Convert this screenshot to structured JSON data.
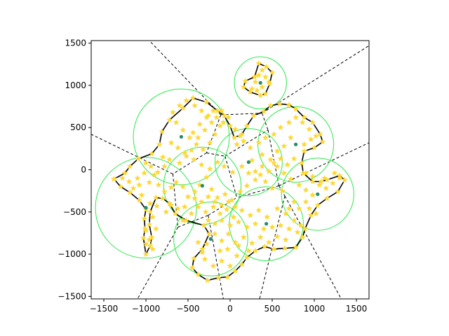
{
  "chart_data": {
    "type": "scatter",
    "title": "",
    "xlabel": "",
    "ylabel": "",
    "xlim": [
      -1650,
      1650
    ],
    "ylim": [
      -1530,
      1530
    ],
    "x_ticks": [
      -1500,
      -1000,
      -500,
      0,
      500,
      1000,
      1500
    ],
    "x_tick_labels": [
      "−1500",
      "−1000",
      "−500",
      "0",
      "500",
      "1000",
      "1500"
    ],
    "y_ticks": [
      -1500,
      -1000,
      -500,
      0,
      500,
      1000,
      1500
    ],
    "y_tick_labels": [
      "−1500",
      "−1000",
      "−500",
      "0",
      "500",
      "1000",
      "1500"
    ],
    "grid": false,
    "legend": "none",
    "colors": {
      "points": "#fdd835",
      "centers": "#1e8e6e",
      "circles": "#2ee84b",
      "boundary": "#000000",
      "voronoi": "#000000"
    },
    "centers": [
      {
        "x": -580,
        "y": 390
      },
      {
        "x": 360,
        "y": 1030
      },
      {
        "x": 780,
        "y": 300
      },
      {
        "x": 220,
        "y": 90
      },
      {
        "x": -330,
        "y": -190
      },
      {
        "x": 1040,
        "y": -290
      },
      {
        "x": -1000,
        "y": -450
      },
      {
        "x": 430,
        "y": -640
      },
      {
        "x": -230,
        "y": -820
      }
    ],
    "circle_radii": [
      570,
      310,
      450,
      400,
      460,
      430,
      600,
      440,
      440
    ],
    "voronoi_edges": [
      [
        [
          -110,
          650
        ],
        [
          380,
          670
        ]
      ],
      [
        [
          380,
          670
        ],
        [
          450,
          470
        ]
      ],
      [
        [
          380,
          670
        ],
        [
          1650,
          1470
        ]
      ],
      [
        [
          -110,
          650
        ],
        [
          -960,
          1530
        ]
      ],
      [
        [
          -110,
          650
        ],
        [
          -280,
          200
        ]
      ],
      [
        [
          -280,
          200
        ],
        [
          -60,
          160
        ]
      ],
      [
        [
          -60,
          160
        ],
        [
          450,
          470
        ]
      ],
      [
        [
          -60,
          160
        ],
        [
          80,
          -330
        ]
      ],
      [
        [
          450,
          470
        ],
        [
          580,
          -190
        ]
      ],
      [
        [
          580,
          -190
        ],
        [
          80,
          -330
        ]
      ],
      [
        [
          580,
          -190
        ],
        [
          1650,
          320
        ]
      ],
      [
        [
          580,
          -190
        ],
        [
          650,
          -310
        ]
      ],
      [
        [
          650,
          -310
        ],
        [
          1320,
          -1530
        ]
      ],
      [
        [
          650,
          -310
        ],
        [
          350,
          -1530
        ]
      ],
      [
        [
          -280,
          200
        ],
        [
          -680,
          -50
        ]
      ],
      [
        [
          -680,
          -50
        ],
        [
          -1650,
          420
        ]
      ],
      [
        [
          -680,
          -50
        ],
        [
          -620,
          -680
        ]
      ],
      [
        [
          -620,
          -680
        ],
        [
          -1100,
          -1530
        ]
      ],
      [
        [
          -620,
          -680
        ],
        [
          -260,
          -540
        ]
      ],
      [
        [
          -260,
          -540
        ],
        [
          80,
          -330
        ]
      ],
      [
        [
          -260,
          -540
        ],
        [
          -80,
          -1530
        ]
      ]
    ],
    "boundary": [
      [
        -1380,
        -110
      ],
      [
        -1250,
        -40
      ],
      [
        -1190,
        40
      ],
      [
        -1090,
        130
      ],
      [
        -930,
        190
      ],
      [
        -840,
        300
      ],
      [
        -810,
        450
      ],
      [
        -720,
        590
      ],
      [
        -560,
        730
      ],
      [
        -440,
        850
      ],
      [
        -280,
        800
      ],
      [
        -150,
        700
      ],
      [
        -70,
        640
      ],
      [
        0,
        520
      ],
      [
        50,
        380
      ],
      [
        140,
        420
      ],
      [
        200,
        520
      ],
      [
        280,
        640
      ],
      [
        400,
        690
      ],
      [
        480,
        760
      ],
      [
        590,
        780
      ],
      [
        700,
        770
      ],
      [
        780,
        720
      ],
      [
        880,
        620
      ],
      [
        980,
        560
      ],
      [
        1070,
        420
      ],
      [
        1100,
        330
      ],
      [
        1000,
        260
      ],
      [
        880,
        220
      ],
      [
        850,
        80
      ],
      [
        870,
        -40
      ],
      [
        980,
        -140
      ],
      [
        1080,
        -140
      ],
      [
        1150,
        -120
      ],
      [
        1300,
        -70
      ],
      [
        1360,
        -120
      ],
      [
        1280,
        -260
      ],
      [
        1150,
        -340
      ],
      [
        1040,
        -420
      ],
      [
        960,
        -540
      ],
      [
        890,
        -700
      ],
      [
        860,
        -800
      ],
      [
        780,
        -920
      ],
      [
        650,
        -930
      ],
      [
        520,
        -940
      ],
      [
        410,
        -910
      ],
      [
        300,
        -960
      ],
      [
        200,
        -1040
      ],
      [
        140,
        -1120
      ],
      [
        60,
        -1200
      ],
      [
        -30,
        -1270
      ],
      [
        -140,
        -1280
      ],
      [
        -270,
        -1310
      ],
      [
        -380,
        -1240
      ],
      [
        -450,
        -1160
      ],
      [
        -430,
        -1050
      ],
      [
        -330,
        -940
      ],
      [
        -250,
        -760
      ],
      [
        -310,
        -660
      ],
      [
        -520,
        -600
      ],
      [
        -650,
        -520
      ],
      [
        -720,
        -400
      ],
      [
        -800,
        -340
      ],
      [
        -880,
        -330
      ],
      [
        -950,
        -500
      ],
      [
        -960,
        -650
      ],
      [
        -930,
        -800
      ],
      [
        -950,
        -900
      ],
      [
        -1000,
        -1000
      ],
      [
        -1030,
        -810
      ],
      [
        -1010,
        -700
      ],
      [
        -1020,
        -580
      ],
      [
        -1000,
        -470
      ],
      [
        -1080,
        -360
      ],
      [
        -1190,
        -270
      ],
      [
        -1300,
        -200
      ],
      [
        -1380,
        -110
      ]
    ],
    "top_cluster": [
      [
        290,
        1100
      ],
      [
        340,
        1260
      ],
      [
        430,
        1220
      ],
      [
        500,
        1150
      ],
      [
        470,
        1020
      ],
      [
        420,
        900
      ],
      [
        360,
        880
      ],
      [
        240,
        920
      ],
      [
        160,
        980
      ],
      [
        180,
        1050
      ],
      [
        290,
        1100
      ]
    ],
    "points_scatter": [
      [
        -1100,
        -100
      ],
      [
        -1000,
        80
      ],
      [
        -900,
        -60
      ],
      [
        -960,
        -150
      ],
      [
        -850,
        -180
      ],
      [
        -780,
        -260
      ],
      [
        -700,
        -210
      ],
      [
        -640,
        -150
      ],
      [
        -560,
        -200
      ],
      [
        -500,
        -320
      ],
      [
        -420,
        -260
      ],
      [
        -360,
        -180
      ],
      [
        -280,
        -90
      ],
      [
        -220,
        -230
      ],
      [
        -150,
        -330
      ],
      [
        -60,
        -290
      ],
      [
        20,
        -360
      ],
      [
        120,
        -260
      ],
      [
        200,
        -190
      ],
      [
        300,
        -120
      ],
      [
        360,
        -60
      ],
      [
        420,
        -140
      ],
      [
        500,
        -220
      ],
      [
        620,
        -250
      ],
      [
        -600,
        80
      ],
      [
        -520,
        160
      ],
      [
        -430,
        120
      ],
      [
        -340,
        60
      ],
      [
        -240,
        10
      ],
      [
        -150,
        90
      ],
      [
        -70,
        40
      ],
      [
        30,
        -30
      ],
      [
        140,
        40
      ],
      [
        260,
        110
      ],
      [
        380,
        180
      ],
      [
        480,
        120
      ],
      [
        560,
        40
      ],
      [
        640,
        -40
      ],
      [
        720,
        -110
      ],
      [
        820,
        -180
      ],
      [
        900,
        -240
      ],
      [
        -640,
        560
      ],
      [
        -560,
        470
      ],
      [
        -480,
        380
      ],
      [
        -400,
        300
      ],
      [
        -320,
        240
      ],
      [
        -240,
        320
      ],
      [
        -180,
        420
      ],
      [
        -120,
        520
      ],
      [
        -700,
        320
      ],
      [
        -620,
        260
      ],
      [
        -540,
        200
      ],
      [
        -460,
        230
      ],
      [
        -380,
        380
      ],
      [
        -300,
        470
      ],
      [
        -220,
        560
      ],
      [
        -540,
        -440
      ],
      [
        -460,
        -520
      ],
      [
        -380,
        -440
      ],
      [
        -290,
        -500
      ],
      [
        -200,
        -440
      ],
      [
        -120,
        -520
      ],
      [
        -40,
        -470
      ],
      [
        40,
        -560
      ],
      [
        140,
        -480
      ],
      [
        240,
        -540
      ],
      [
        340,
        -480
      ],
      [
        440,
        -560
      ],
      [
        560,
        -460
      ],
      [
        660,
        -520
      ],
      [
        760,
        -600
      ],
      [
        -180,
        -760
      ],
      [
        -100,
        -840
      ],
      [
        -20,
        -760
      ],
      [
        60,
        -860
      ],
      [
        160,
        -800
      ],
      [
        260,
        -870
      ],
      [
        360,
        -800
      ],
      [
        460,
        -860
      ],
      [
        560,
        -790
      ],
      [
        660,
        -830
      ],
      [
        -300,
        -1060
      ],
      [
        -200,
        -1140
      ],
      [
        -100,
        -1080
      ],
      [
        0,
        -1140
      ],
      [
        80,
        -1020
      ],
      [
        -30,
        -940
      ],
      [
        -330,
        -980
      ],
      [
        -380,
        -860
      ],
      [
        -280,
        -880
      ],
      [
        -120,
        -960
      ],
      [
        220,
        -960
      ],
      [
        100,
        -900
      ],
      [
        -1150,
        -220
      ],
      [
        -1050,
        -300
      ],
      [
        -950,
        -400
      ],
      [
        -870,
        -430
      ],
      [
        -920,
        -560
      ],
      [
        -880,
        -700
      ],
      [
        -1000,
        -720
      ],
      [
        -960,
        -830
      ],
      [
        -1000,
        -880
      ],
      [
        -920,
        -940
      ],
      [
        -860,
        -30
      ],
      [
        -780,
        40
      ],
      [
        -720,
        120
      ],
      [
        -800,
        150
      ],
      [
        -680,
        680
      ],
      [
        -600,
        760
      ],
      [
        -520,
        820
      ],
      [
        -420,
        760
      ],
      [
        -340,
        700
      ],
      [
        -260,
        640
      ],
      [
        -160,
        620
      ],
      [
        -80,
        560
      ],
      [
        80,
        300
      ],
      [
        160,
        340
      ],
      [
        240,
        260
      ],
      [
        340,
        320
      ],
      [
        420,
        380
      ],
      [
        520,
        420
      ],
      [
        600,
        500
      ],
      [
        700,
        560
      ],
      [
        780,
        620
      ],
      [
        860,
        560
      ],
      [
        940,
        480
      ],
      [
        1020,
        400
      ],
      [
        960,
        360
      ],
      [
        880,
        300
      ],
      [
        720,
        380
      ],
      [
        640,
        280
      ],
      [
        560,
        220
      ],
      [
        900,
        -40
      ],
      [
        980,
        -80
      ],
      [
        1060,
        -180
      ],
      [
        1140,
        -220
      ],
      [
        1220,
        -160
      ],
      [
        1300,
        -100
      ],
      [
        1240,
        -40
      ],
      [
        1120,
        -100
      ],
      [
        980,
        -300
      ],
      [
        900,
        -380
      ],
      [
        820,
        -460
      ],
      [
        760,
        -380
      ],
      [
        700,
        -460
      ],
      [
        940,
        -460
      ],
      [
        1020,
        -520
      ],
      [
        260,
        960
      ],
      [
        300,
        1040
      ],
      [
        340,
        1120
      ],
      [
        380,
        1180
      ],
      [
        420,
        1100
      ],
      [
        460,
        1040
      ],
      [
        380,
        980
      ],
      [
        320,
        940
      ],
      [
        220,
        -40
      ],
      [
        300,
        -20
      ],
      [
        380,
        40
      ],
      [
        460,
        -20
      ],
      [
        520,
        80
      ],
      [
        600,
        130
      ],
      [
        680,
        60
      ],
      [
        760,
        130
      ],
      [
        -420,
        -340
      ],
      [
        -340,
        -380
      ],
      [
        -260,
        -320
      ],
      [
        -180,
        -380
      ],
      [
        -100,
        -420
      ],
      [
        -20,
        -380
      ],
      [
        60,
        -440
      ],
      [
        -260,
        -600
      ],
      [
        -180,
        -640
      ],
      [
        -100,
        -600
      ],
      [
        0,
        -660
      ],
      [
        100,
        -620
      ],
      [
        200,
        -680
      ],
      [
        300,
        -640
      ],
      [
        400,
        -700
      ],
      [
        500,
        -680
      ],
      [
        600,
        -660
      ],
      [
        700,
        -700
      ],
      [
        800,
        -740
      ],
      [
        840,
        -660
      ],
      [
        -560,
        -600
      ],
      [
        -620,
        -460
      ],
      [
        -700,
        -420
      ],
      [
        -760,
        -500
      ],
      [
        -1080,
        -180
      ],
      [
        -1200,
        -140
      ],
      [
        -1280,
        -100
      ],
      [
        -1020,
        -40
      ],
      [
        -940,
        40
      ],
      [
        -440,
        440
      ],
      [
        -360,
        540
      ],
      [
        -280,
        620
      ],
      [
        -200,
        700
      ],
      [
        -100,
        700
      ],
      [
        -20,
        620
      ],
      [
        60,
        480
      ],
      [
        120,
        400
      ]
    ],
    "points_boundary_step": 1
  }
}
